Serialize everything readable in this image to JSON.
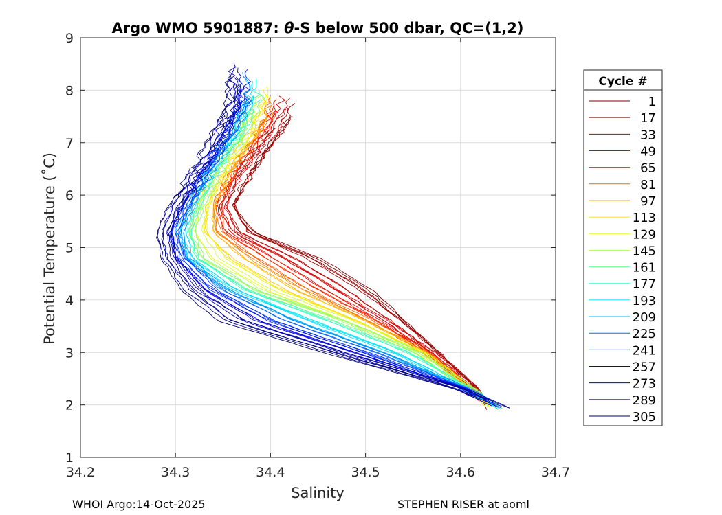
{
  "chart_data": {
    "type": "line",
    "title_prefix": "Argo WMO 5901887: ",
    "title_theta": "θ",
    "title_suffix": "-S below 500 dbar,  QC=(1,2)",
    "xlabel": "Salinity",
    "ylabel": "Potential Temperature (˚C)",
    "xlim": [
      34.2,
      34.7
    ],
    "ylim": [
      1,
      9
    ],
    "xticks": [
      34.2,
      34.3,
      34.4,
      34.5,
      34.6,
      34.7
    ],
    "xtick_labels": [
      "34.2",
      "34.3",
      "34.4",
      "34.5",
      "34.6",
      "34.7"
    ],
    "yticks": [
      1,
      2,
      3,
      4,
      5,
      6,
      7,
      8,
      9
    ],
    "ytick_labels": [
      "1",
      "2",
      "3",
      "4",
      "5",
      "6",
      "7",
      "8",
      "9"
    ],
    "grid": true,
    "legend": {
      "title": "Cycle #",
      "position": "right",
      "entries": [
        {
          "label": "1",
          "color": "#800000"
        },
        {
          "label": "17",
          "color": "#a00000"
        },
        {
          "label": "33",
          "color": "#c00000"
        },
        {
          "label": "49",
          "color": "#e00000"
        },
        {
          "label": "65",
          "color": "#ff1a00"
        },
        {
          "label": "81",
          "color": "#ff6a00"
        },
        {
          "label": "97",
          "color": "#ffaa00"
        },
        {
          "label": "113",
          "color": "#ffe000"
        },
        {
          "label": "129",
          "color": "#e6ff1a"
        },
        {
          "label": "145",
          "color": "#b0ff4d"
        },
        {
          "label": "161",
          "color": "#6aff8d"
        },
        {
          "label": "177",
          "color": "#2affcf"
        },
        {
          "label": "193",
          "color": "#00e4ff"
        },
        {
          "label": "209",
          "color": "#00b0ff"
        },
        {
          "label": "225",
          "color": "#0070ff"
        },
        {
          "label": "241",
          "color": "#0036ff"
        },
        {
          "label": "257",
          "color": "#0000ee"
        },
        {
          "label": "273",
          "color": "#0000c0"
        },
        {
          "label": "289",
          "color": "#000095"
        },
        {
          "label": "305",
          "color": "#000070"
        }
      ]
    },
    "profile_model": {
      "description": "Theta-S profiles: one curve per cycle, shape by cycle-index fraction f (0=first, 1=last)",
      "curves_per_legend_step": 3,
      "key_theta": [
        1.9,
        2.3,
        3.0,
        3.6,
        4.2,
        4.8,
        5.3,
        5.8,
        6.4,
        7.2,
        7.8
      ],
      "salinity_f0": [
        34.625,
        34.615,
        34.575,
        34.54,
        34.505,
        34.45,
        34.38,
        34.36,
        34.378,
        34.41,
        34.425
      ],
      "salinity_f05": [
        34.64,
        34.61,
        34.555,
        34.475,
        34.38,
        34.325,
        34.315,
        34.325,
        34.34,
        34.37,
        34.385
      ],
      "salinity_f1": [
        34.652,
        34.6,
        34.46,
        34.35,
        34.31,
        34.29,
        34.285,
        34.298,
        34.32,
        34.345,
        34.36
      ],
      "theta_max_f0": 7.5,
      "theta_max_f1": 8.3
    }
  },
  "footer": {
    "left": "WHOI Argo:14-Oct-2025",
    "right": "STEPHEN RISER at aoml"
  }
}
